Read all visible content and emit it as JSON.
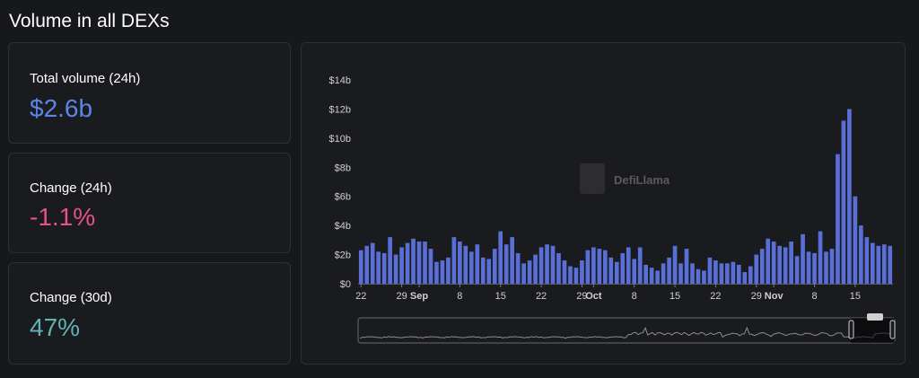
{
  "page": {
    "title": "Volume in all DEXs"
  },
  "stats": [
    {
      "label": "Total volume (24h)",
      "value": "$2.6b",
      "color": "#5c85e6"
    },
    {
      "label": "Change (24h)",
      "value": "-1.1%",
      "color": "#e8508a"
    },
    {
      "label": "Change (30d)",
      "value": "47%",
      "color": "#5fb3b3"
    }
  ],
  "watermark": {
    "text": "DefiLlama"
  },
  "colors": {
    "bar": "#5a6fd6",
    "axis_text": "#d0d0d0",
    "background": "#1a1b1f"
  },
  "chart_data": {
    "type": "bar",
    "ylim": [
      0,
      14
    ],
    "yticks": [
      {
        "value": 0,
        "label": "$0"
      },
      {
        "value": 2,
        "label": "$2b"
      },
      {
        "value": 4,
        "label": "$4b"
      },
      {
        "value": 6,
        "label": "$6b"
      },
      {
        "value": 8,
        "label": "$8b"
      },
      {
        "value": 10,
        "label": "$10b"
      },
      {
        "value": 12,
        "label": "$12b"
      },
      {
        "value": 14,
        "label": "$14b"
      }
    ],
    "xticks": [
      {
        "index": 0.5,
        "label": "22",
        "bold": false
      },
      {
        "index": 7.5,
        "label": "29",
        "bold": false
      },
      {
        "index": 10.5,
        "label": "Sep",
        "bold": true
      },
      {
        "index": 17.5,
        "label": "8",
        "bold": false
      },
      {
        "index": 24.5,
        "label": "15",
        "bold": false
      },
      {
        "index": 31.5,
        "label": "22",
        "bold": false
      },
      {
        "index": 38.5,
        "label": "29",
        "bold": false
      },
      {
        "index": 40.5,
        "label": "Oct",
        "bold": true
      },
      {
        "index": 47.5,
        "label": "8",
        "bold": false
      },
      {
        "index": 54.5,
        "label": "15",
        "bold": false
      },
      {
        "index": 61.5,
        "label": "22",
        "bold": false
      },
      {
        "index": 68.5,
        "label": "29",
        "bold": false
      },
      {
        "index": 71.5,
        "label": "Nov",
        "bold": true
      },
      {
        "index": 78.5,
        "label": "8",
        "bold": false
      },
      {
        "index": 85.5,
        "label": "15",
        "bold": false
      }
    ],
    "values": [
      2.3,
      2.6,
      2.8,
      2.2,
      2.1,
      3.2,
      2.0,
      2.5,
      2.8,
      3.1,
      2.9,
      2.9,
      2.4,
      1.5,
      1.6,
      1.8,
      3.2,
      2.9,
      2.6,
      2.2,
      2.7,
      1.8,
      1.7,
      2.4,
      3.6,
      2.7,
      3.2,
      2.1,
      1.4,
      1.6,
      2.0,
      2.5,
      2.7,
      2.6,
      2.1,
      1.6,
      1.2,
      1.1,
      1.6,
      2.3,
      2.5,
      2.4,
      2.3,
      1.8,
      1.5,
      2.1,
      2.5,
      1.7,
      2.5,
      1.3,
      1.1,
      0.9,
      1.4,
      1.8,
      2.6,
      1.4,
      2.4,
      1.4,
      1.0,
      0.9,
      1.8,
      1.6,
      1.4,
      1.4,
      1.5,
      1.3,
      0.8,
      1.2,
      2.0,
      2.4,
      3.1,
      2.9,
      2.6,
      2.5,
      2.9,
      1.9,
      3.4,
      2.2,
      2.1,
      3.6,
      2.2,
      2.4,
      8.9,
      11.2,
      12.0,
      6.0,
      4.0,
      3.2,
      2.8,
      2.6,
      2.7,
      2.6
    ]
  }
}
